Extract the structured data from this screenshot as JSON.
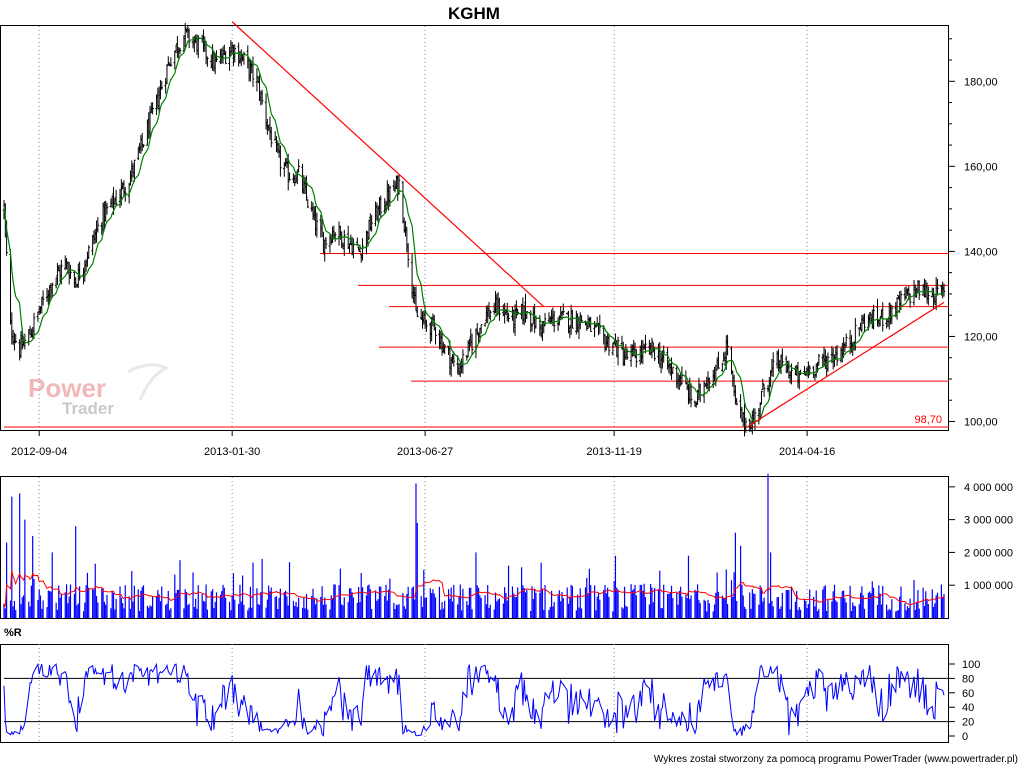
{
  "chart_data": [
    {
      "type": "candlestick",
      "title": "KGHM",
      "x_tick_labels": [
        "2012-09-04",
        "2013-01-30",
        "2013-06-27",
        "2013-11-19",
        "2014-04-16"
      ],
      "x_range": [
        "2012-08-08",
        "2014-07-30"
      ],
      "ylim": [
        98,
        193
      ],
      "y_ticks": [
        100,
        120,
        140,
        160,
        180
      ],
      "y_tick_labels": [
        "100,00",
        "120,00",
        "140,00",
        "160,00",
        "180,00"
      ],
      "grid_x": true,
      "price_path": [
        [
          "2012-08-08",
          150
        ],
        [
          "2012-08-13",
          122
        ],
        [
          "2012-08-20",
          117
        ],
        [
          "2012-08-27",
          120
        ],
        [
          "2012-09-04",
          126
        ],
        [
          "2012-09-14",
          133
        ],
        [
          "2012-09-24",
          137
        ],
        [
          "2012-10-02",
          133
        ],
        [
          "2012-10-12",
          140
        ],
        [
          "2012-10-22",
          148
        ],
        [
          "2012-11-01",
          152
        ],
        [
          "2012-11-12",
          157
        ],
        [
          "2012-11-22",
          165
        ],
        [
          "2012-12-03",
          175
        ],
        [
          "2012-12-13",
          185
        ],
        [
          "2012-12-24",
          191
        ],
        [
          "2013-01-07",
          188
        ],
        [
          "2013-01-17",
          184
        ],
        [
          "2013-01-30",
          188
        ],
        [
          "2013-02-08",
          185
        ],
        [
          "2013-02-18",
          180
        ],
        [
          "2013-02-26",
          170
        ],
        [
          "2013-03-06",
          162
        ],
        [
          "2013-03-14",
          158
        ],
        [
          "2013-03-22",
          158
        ],
        [
          "2013-04-02",
          148
        ],
        [
          "2013-04-10",
          142
        ],
        [
          "2013-04-18",
          145
        ],
        [
          "2013-04-26",
          143
        ],
        [
          "2013-05-08",
          140
        ],
        [
          "2013-05-17",
          147
        ],
        [
          "2013-05-27",
          152
        ],
        [
          "2013-06-07",
          156
        ],
        [
          "2013-06-14",
          140
        ],
        [
          "2013-06-20",
          125
        ],
        [
          "2013-06-27",
          123
        ],
        [
          "2013-07-05",
          122
        ],
        [
          "2013-07-12",
          117
        ],
        [
          "2013-07-22",
          112
        ],
        [
          "2013-08-01",
          118
        ],
        [
          "2013-08-12",
          125
        ],
        [
          "2013-08-22",
          127
        ],
        [
          "2013-09-02",
          124
        ],
        [
          "2013-09-12",
          126
        ],
        [
          "2013-09-23",
          122
        ],
        [
          "2013-10-03",
          124
        ],
        [
          "2013-10-14",
          124
        ],
        [
          "2013-10-25",
          124
        ],
        [
          "2013-11-05",
          121
        ],
        [
          "2013-11-12",
          119
        ],
        [
          "2013-11-19",
          118
        ],
        [
          "2013-11-28",
          115
        ],
        [
          "2013-12-09",
          116
        ],
        [
          "2013-12-19",
          117
        ],
        [
          "2013-12-30",
          113
        ],
        [
          "2014-01-09",
          110
        ],
        [
          "2014-01-20",
          104
        ],
        [
          "2014-01-28",
          110
        ],
        [
          "2014-02-06",
          112
        ],
        [
          "2014-02-14",
          118
        ],
        [
          "2014-02-20",
          104
        ],
        [
          "2014-02-26",
          100
        ],
        [
          "2014-03-06",
          100
        ],
        [
          "2014-03-14",
          108
        ],
        [
          "2014-03-24",
          114
        ],
        [
          "2014-04-02",
          112
        ],
        [
          "2014-04-10",
          110
        ],
        [
          "2014-04-16",
          112
        ],
        [
          "2014-04-28",
          114
        ],
        [
          "2014-05-09",
          116
        ],
        [
          "2014-05-20",
          119
        ],
        [
          "2014-05-30",
          124
        ],
        [
          "2014-06-10",
          124
        ],
        [
          "2014-06-20",
          126
        ],
        [
          "2014-06-30",
          129
        ],
        [
          "2014-07-10",
          131
        ],
        [
          "2014-07-20",
          130
        ],
        [
          "2014-07-30",
          130
        ]
      ],
      "horizontal_lines": [
        139.5,
        132,
        127,
        117.5,
        109.5
      ],
      "trend_lines": [
        {
          "from": [
            "2013-01-30",
            194
          ],
          "to": [
            "2013-09-26",
            127
          ]
        },
        {
          "from": [
            "2014-03-01",
            98.7
          ],
          "to": [
            "2014-07-30",
            128
          ]
        }
      ],
      "annotation": {
        "label": "98,70",
        "value": 98.7
      },
      "colors": {
        "candles": "#000000",
        "moving_average": "#008000",
        "lines": "#ff0000"
      },
      "watermark": {
        "line1": "Power",
        "line2": "Trader"
      }
    },
    {
      "type": "bar",
      "name": "volume",
      "ylim": [
        0,
        4300000
      ],
      "y_ticks": [
        1000000,
        2000000,
        3000000,
        4000000
      ],
      "y_tick_labels": [
        "1 000 000",
        "2 000 000",
        "3 000 000",
        "4 000 000"
      ],
      "typical_volume": 800000,
      "spikes": [
        [
          "2012-08-10",
          2300000
        ],
        [
          "2012-08-14",
          3700000
        ],
        [
          "2012-08-20",
          3800000
        ],
        [
          "2012-08-24",
          3000000
        ],
        [
          "2012-08-30",
          2500000
        ],
        [
          "2012-09-14",
          2000000
        ],
        [
          "2012-10-02",
          2800000
        ],
        [
          "2013-02-22",
          1800000
        ],
        [
          "2013-03-15",
          1700000
        ],
        [
          "2013-06-20",
          4100000
        ],
        [
          "2013-06-21",
          2900000
        ],
        [
          "2013-08-05",
          2000000
        ],
        [
          "2013-11-20",
          1900000
        ],
        [
          "2014-01-15",
          1900000
        ],
        [
          "2014-02-20",
          2600000
        ],
        [
          "2014-02-24",
          2200000
        ],
        [
          "2014-03-17",
          4400000
        ],
        [
          "2014-03-19",
          2000000
        ]
      ],
      "colors": {
        "bars": "#0000ff",
        "average": "#ff0000"
      }
    },
    {
      "type": "line",
      "name": "%R",
      "title": "%R",
      "ylim": [
        0,
        100
      ],
      "y_ticks": [
        0,
        20,
        40,
        60,
        80,
        100
      ],
      "y_tick_labels": [
        "0",
        "20",
        "40",
        "60",
        "80",
        "100"
      ],
      "reference_lines": [
        20,
        80
      ],
      "colors": {
        "line": "#0000ff"
      }
    }
  ],
  "footer": "Wykres został stworzony za pomocą programu PowerTrader (www.powertrader.pl)"
}
